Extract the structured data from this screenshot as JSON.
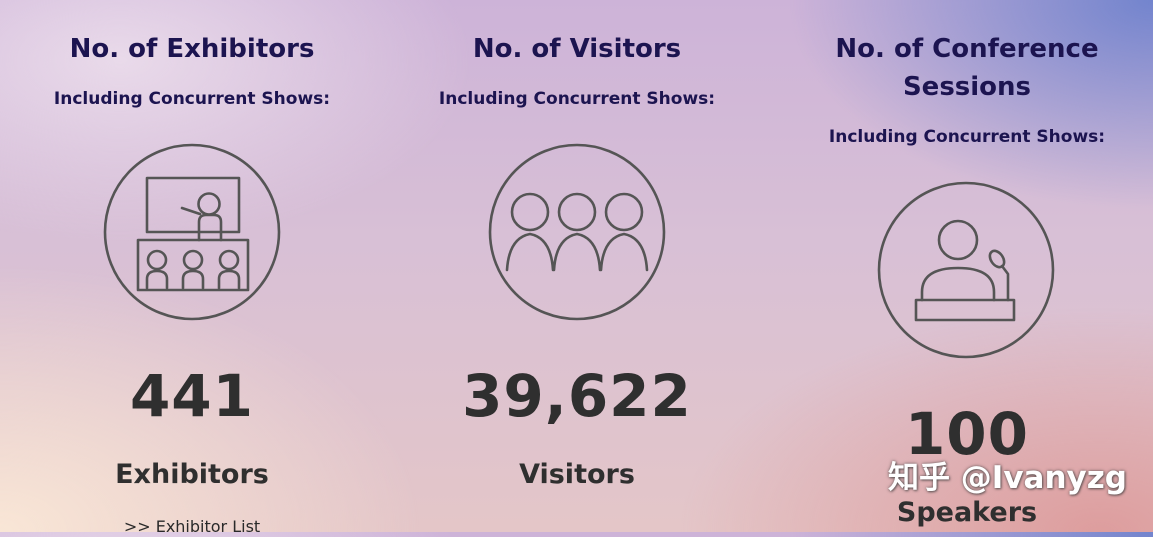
{
  "exhibitors": {
    "heading": "No. of Exhibitors",
    "subheading": "Including Concurrent Shows:",
    "icon": "presentation-audience-icon",
    "value": "441",
    "unit": "Exhibitors",
    "link": ">> Exhibitor List"
  },
  "visitors": {
    "heading": "No. of Visitors",
    "subheading": "Including Concurrent Shows:",
    "icon": "visitors-group-icon",
    "value": "39,622",
    "unit": "Visitors"
  },
  "sessions": {
    "heading_line1": "No. of Conference",
    "heading_line2": "Sessions",
    "subheading": "Including Concurrent Shows:",
    "icon": "speaker-podium-icon",
    "value": "100",
    "unit": "Speakers"
  },
  "watermark": {
    "text": "知乎 @Ivanyzg"
  },
  "colors": {
    "heading": "#1c1450",
    "number": "#2f2f2f",
    "icon_stroke": "#555555"
  }
}
